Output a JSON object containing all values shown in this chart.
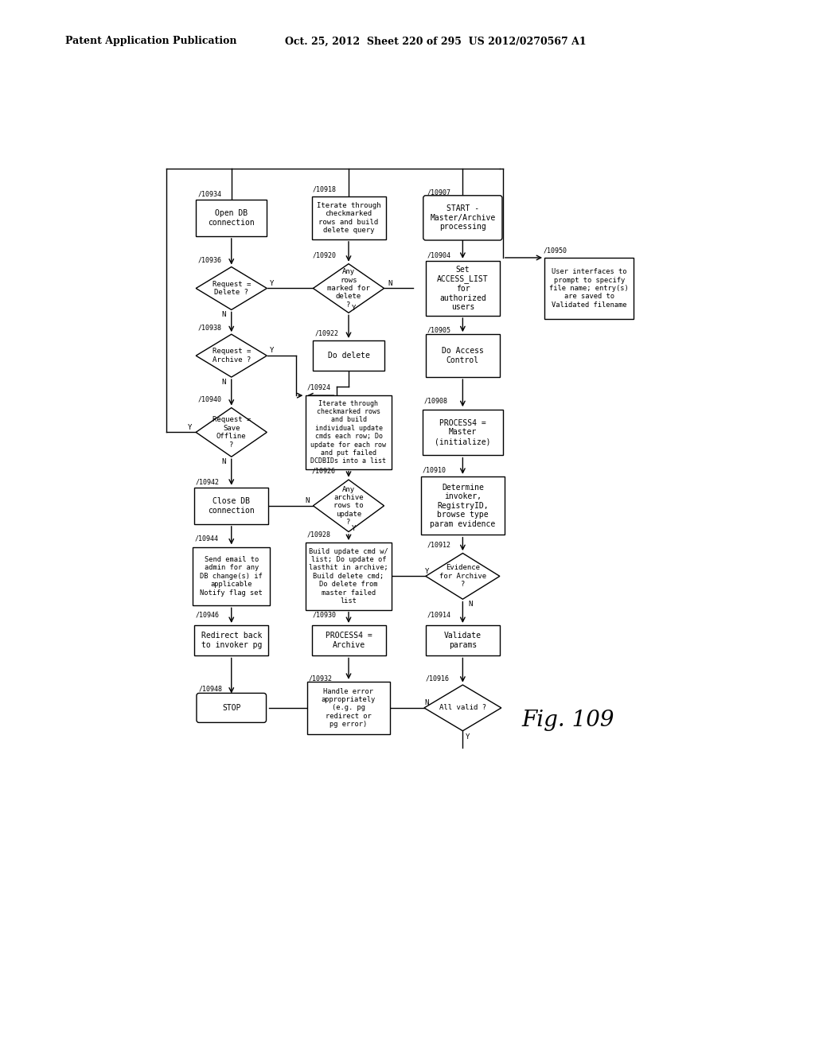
{
  "title_left": "Patent Application Publication",
  "title_right": "Oct. 25, 2012  Sheet 220 of 295  US 2012/0270567 A1",
  "fig_label": "Fig. 109",
  "bg_color": "#ffffff",
  "line_color": "#000000"
}
